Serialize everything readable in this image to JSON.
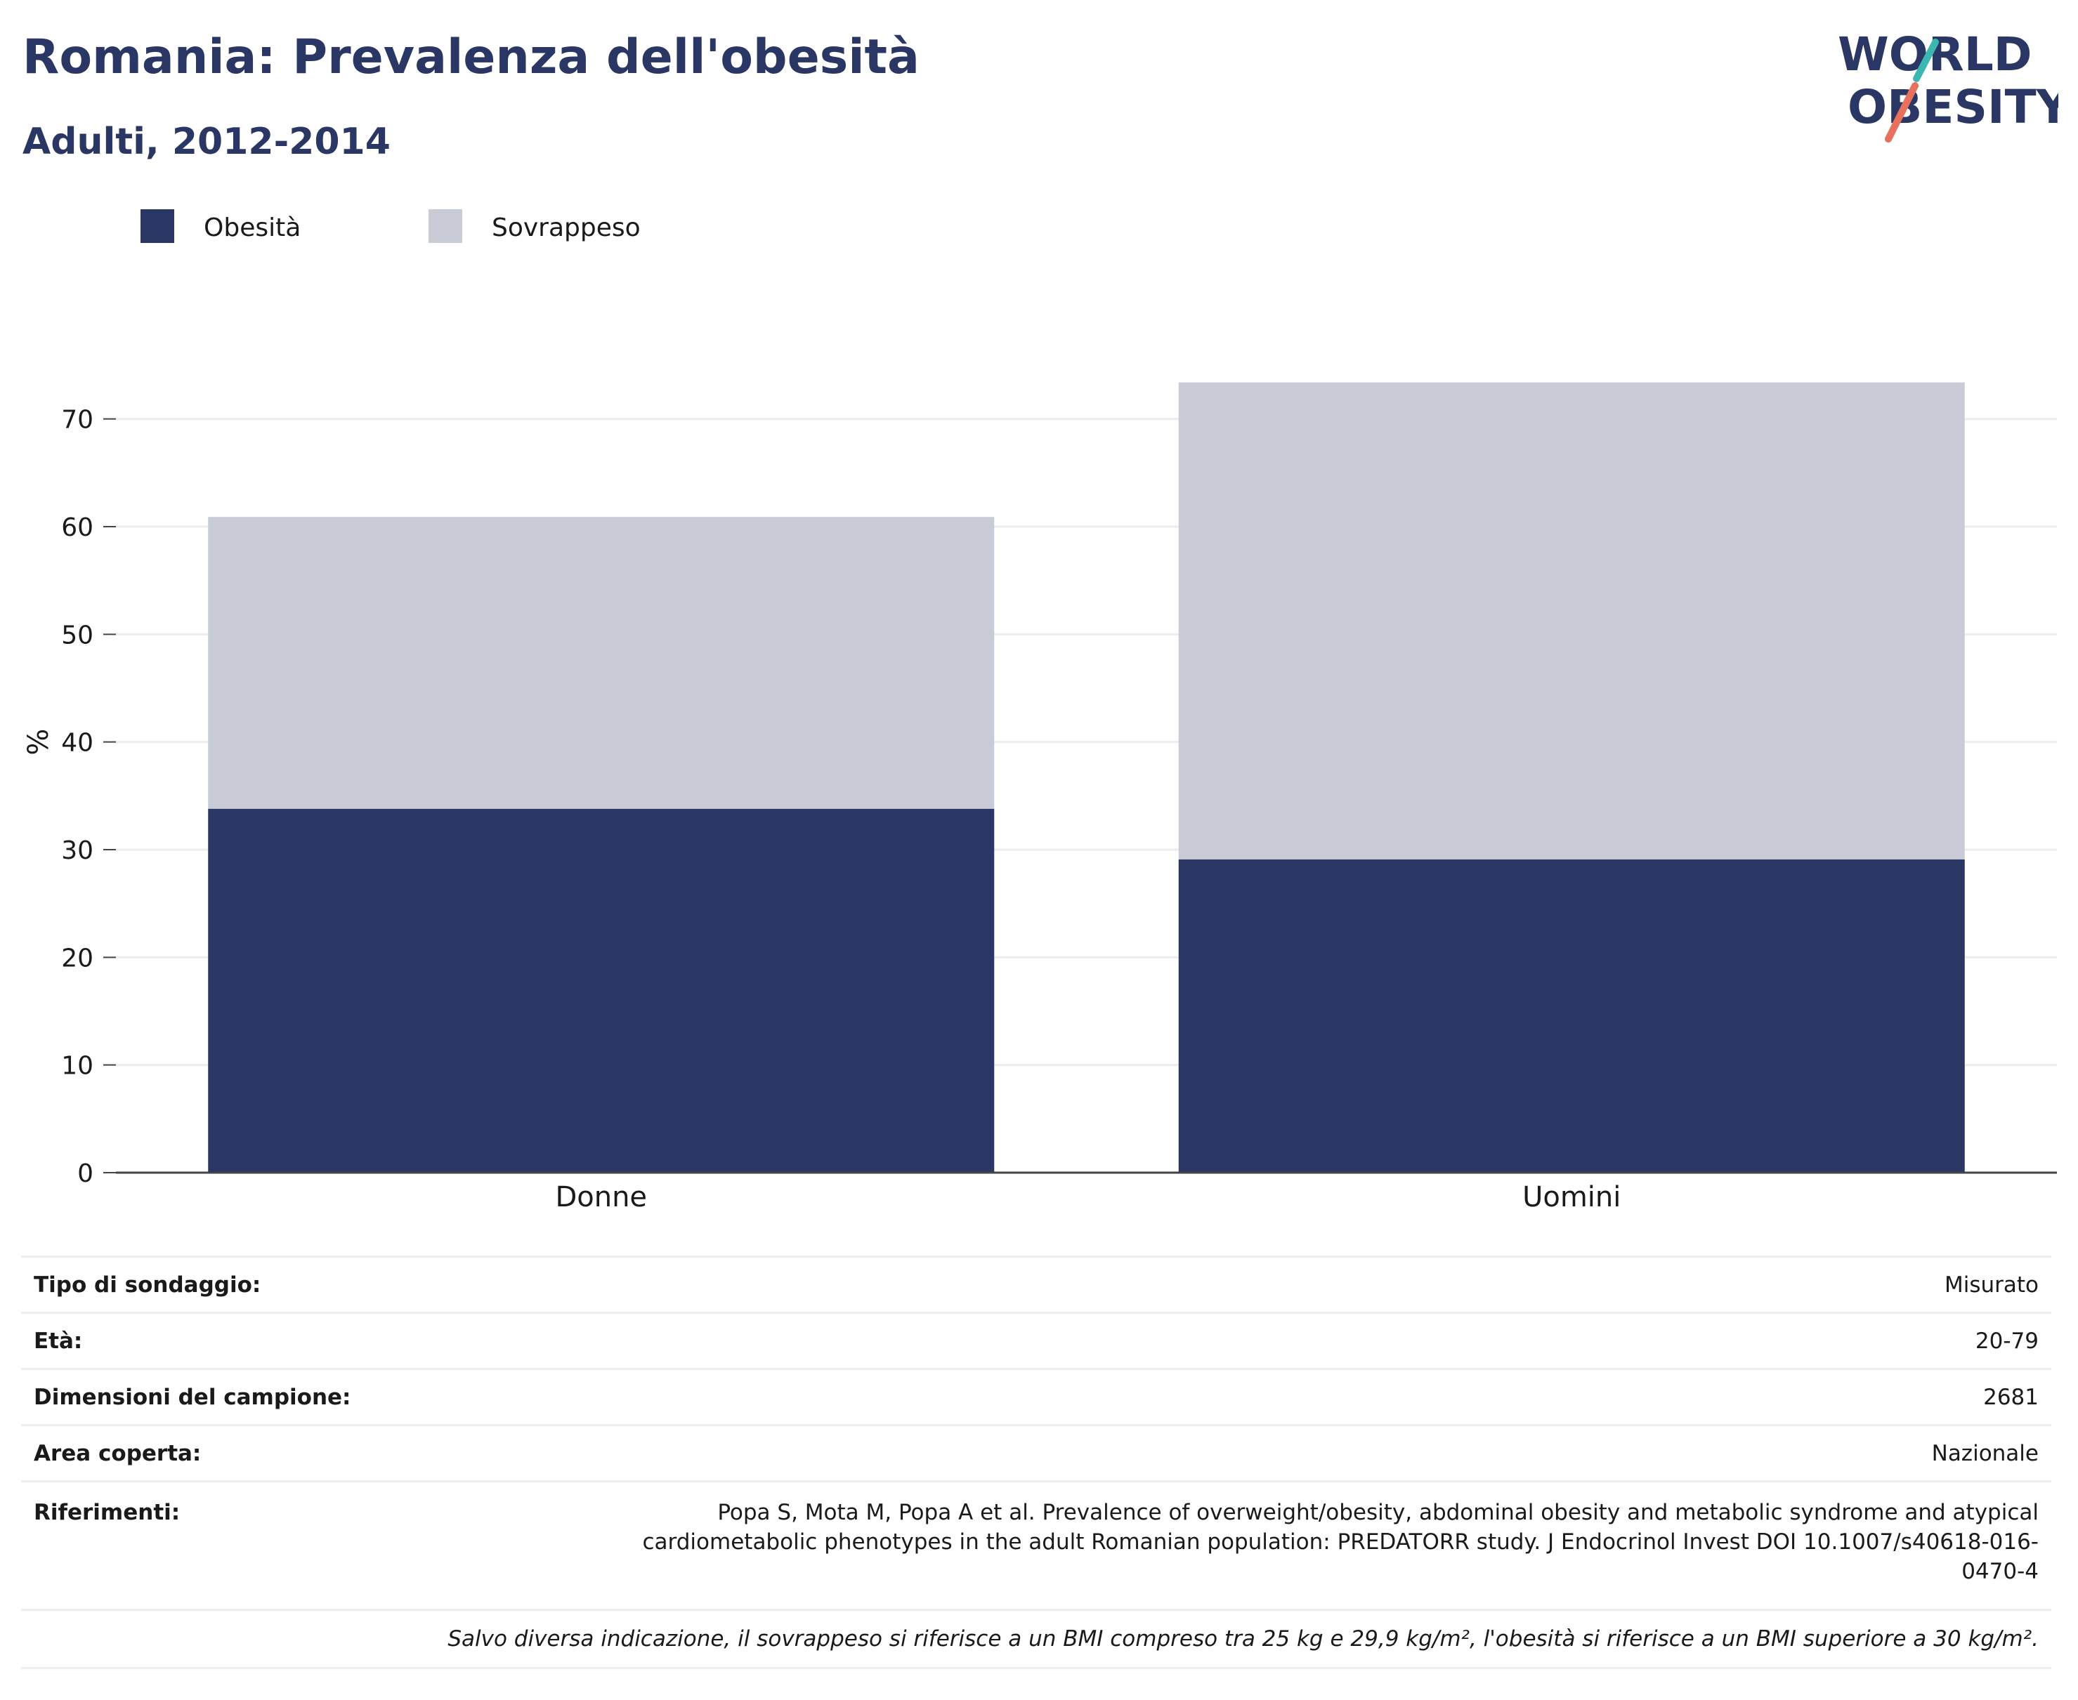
{
  "header": {
    "title": "Romania: Prevalenza dell'obesità",
    "subtitle": "Adulti, 2012-2014"
  },
  "logo": {
    "line1": "WORLD",
    "line2": "OBESITY",
    "colors": {
      "text": "#2a3663",
      "slash_top": "#3bb6b0",
      "slash_bottom": "#e8705f"
    }
  },
  "chart_data": {
    "type": "bar",
    "stacked": true,
    "categories": [
      "Donne",
      "Uomini"
    ],
    "series": [
      {
        "name": "Obesità",
        "color": "#2a3663",
        "values": [
          33.8,
          29.1
        ]
      },
      {
        "name": "Sovrappeso",
        "color": "#c9cbd7",
        "values": [
          27.1,
          44.3
        ]
      }
    ],
    "ylabel": "%",
    "ylim": [
      0,
      75
    ],
    "yticks": [
      0,
      10,
      20,
      30,
      40,
      50,
      60,
      70
    ],
    "grid": true,
    "legend": "top-left"
  },
  "info": {
    "rows": [
      {
        "key": "Tipo di sondaggio:",
        "value": "Misurato"
      },
      {
        "key": "Età:",
        "value": "20-79"
      },
      {
        "key": "Dimensioni del campione:",
        "value": "2681"
      },
      {
        "key": "Area coperta:",
        "value": "Nazionale"
      }
    ],
    "reference": {
      "key": "Riferimenti:",
      "lines": [
        "Popa S, Mota M, Popa A et al. Prevalence of overweight/obesity, abdominal obesity and metabolic syndrome and atypical",
        "cardiometabolic phenotypes in the adult Romanian population: PREDATORR study. J Endocrinol Invest DOI 10.1007/s40618-016-",
        "0470-4"
      ]
    },
    "note": "Salvo diversa indicazione, il sovrappeso si riferisce a un BMI compreso tra 25 kg e 29,9 kg/m², l'obesità si riferisce a un BMI superiore a 30 kg/m²."
  }
}
